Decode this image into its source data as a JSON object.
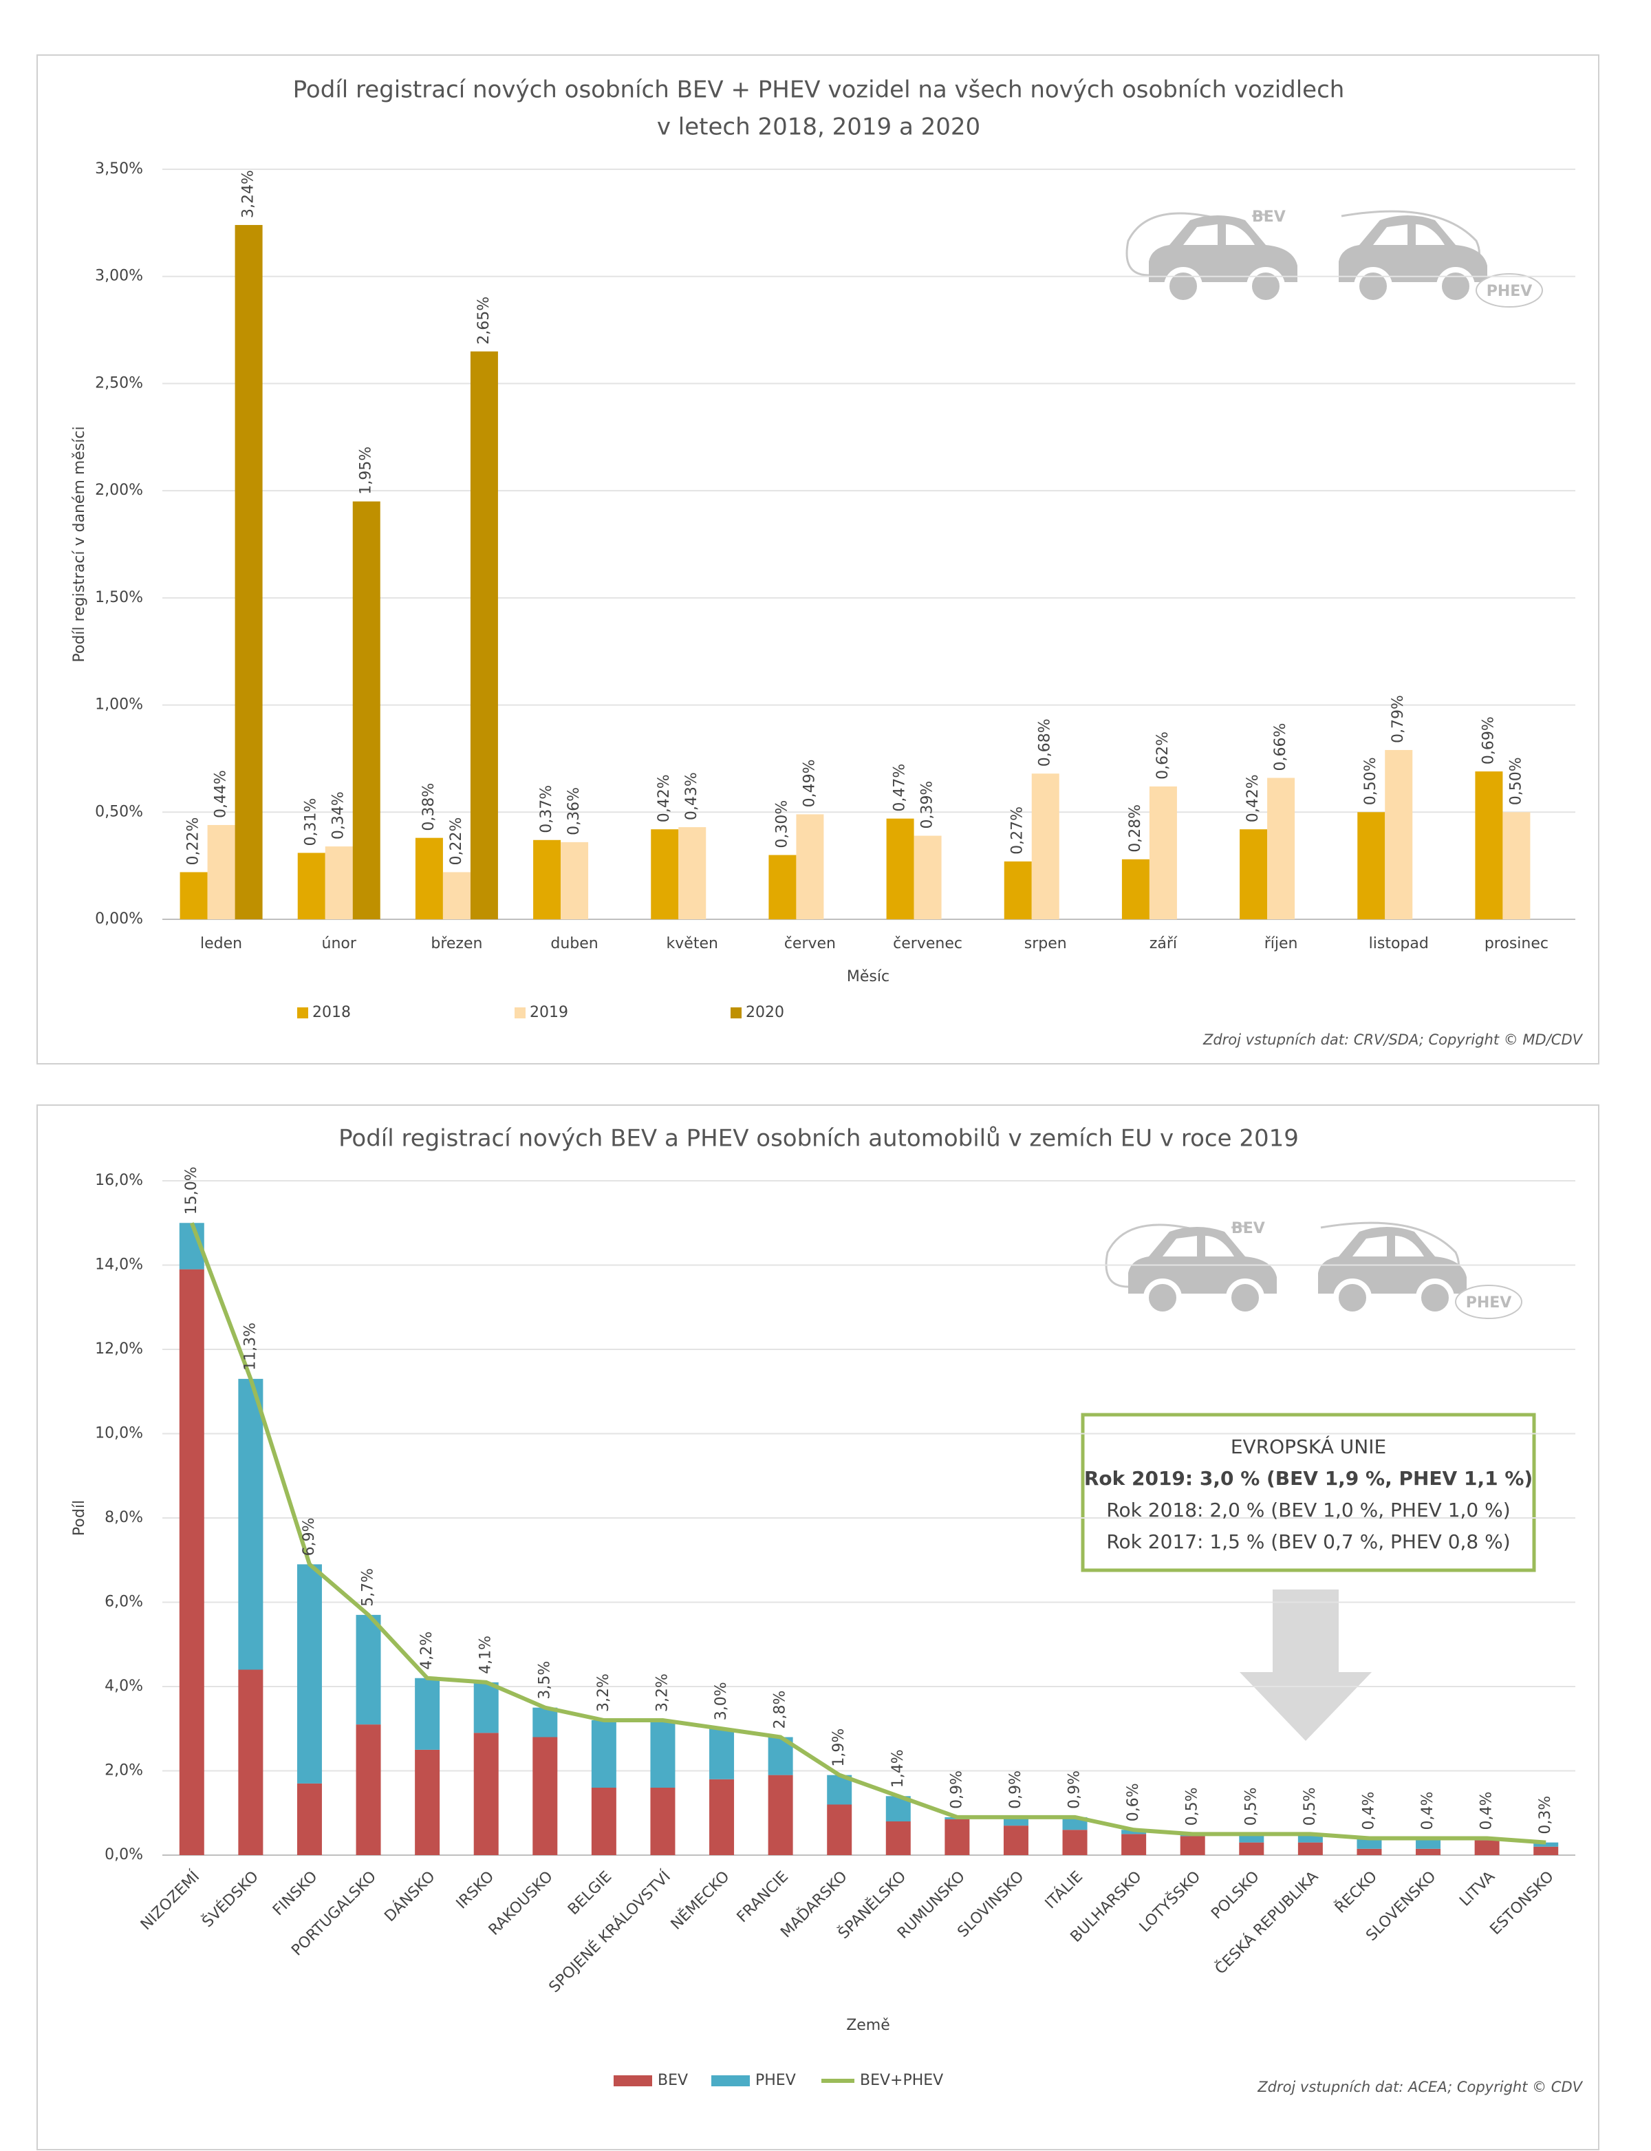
{
  "chart_data": [
    {
      "type": "bar",
      "title": [
        "Podíl registrací nových osobních BEV + PHEV vozidel na všech nových osobních vozidlech",
        "v letech 2018, 2019 a 2020"
      ],
      "icon_labels": [
        "BEV",
        "PHEV"
      ],
      "x_label": "Měsíc",
      "y_label": "Podíl registrací v daném měsíci",
      "source": "Zdroj vstupních dat: CRV/SDA; Copyright © MD/CDV",
      "categories": [
        "leden",
        "únor",
        "březen",
        "duben",
        "květen",
        "červen",
        "červenec",
        "srpen",
        "září",
        "říjen",
        "listopad",
        "prosinec"
      ],
      "series": [
        {
          "name": "2018",
          "color": "#e2a900",
          "values": [
            0.22,
            0.31,
            0.38,
            0.37,
            0.42,
            0.3,
            0.47,
            0.27,
            0.28,
            0.42,
            0.5,
            0.69
          ],
          "value_labels": [
            "0,22%",
            "0,31%",
            "0,38%",
            "0,37%",
            "0,42%",
            "0,30%",
            "0,47%",
            "0,27%",
            "0,28%",
            "0,42%",
            "0,50%",
            "0,69%"
          ]
        },
        {
          "name": "2019",
          "color": "#fddcaa",
          "values": [
            0.44,
            0.34,
            0.22,
            0.36,
            0.43,
            0.49,
            0.39,
            0.68,
            0.62,
            0.66,
            0.79,
            0.5
          ],
          "value_labels": [
            "0,44%",
            "0,34%",
            "0,22%",
            "0,36%",
            "0,43%",
            "0,49%",
            "0,39%",
            "0,68%",
            "0,62%",
            "0,66%",
            "0,79%",
            "0,50%"
          ]
        },
        {
          "name": "2020",
          "color": "#bf9000",
          "values": [
            3.24,
            1.95,
            2.65,
            null,
            null,
            null,
            null,
            null,
            null,
            null,
            null,
            null
          ],
          "value_labels": [
            "3,24%",
            "1,95%",
            "2,65%",
            null,
            null,
            null,
            null,
            null,
            null,
            null,
            null,
            null
          ]
        }
      ],
      "ylim": [
        0,
        3.5
      ],
      "yticks": [
        {
          "value": 0,
          "label": "0,00%"
        },
        {
          "value": 0.5,
          "label": "0,50%"
        },
        {
          "value": 1,
          "label": "1,00%"
        },
        {
          "value": 1.5,
          "label": "1,50%"
        },
        {
          "value": 2,
          "label": "2,00%"
        },
        {
          "value": 2.5,
          "label": "2,50%"
        },
        {
          "value": 3,
          "label": "3,00%"
        },
        {
          "value": 3.5,
          "label": "3,50%"
        }
      ],
      "grid": true,
      "legend": "bottom"
    },
    {
      "type": "stacked_bar",
      "title": [
        "Podíl registrací nových BEV a PHEV osobních automobilů v zemích EU v roce 2019"
      ],
      "icon_labels": [
        "BEV",
        "PHEV"
      ],
      "x_label": "Země",
      "y_label": "Podíl",
      "source": "Zdroj vstupních dat: ACEA; Copyright © CDV",
      "annotation": [
        "EVROPSKÁ UNIE",
        "Rok 2019: 3,0 % (BEV 1,9 %, PHEV 1,1 %)",
        "Rok 2018: 2,0 % (BEV 1,0 %, PHEV 1,0 %)",
        "Rok 2017: 1,5 % (BEV 0,7 %, PHEV 0,8 %)"
      ],
      "categories": [
        "NIZOZEMÍ",
        "ŠVÉDSKO",
        "FINSKO",
        "PORTUGALSKO",
        "DÁNSKO",
        "IRSKO",
        "RAKOUSKO",
        "BELGIE",
        "SPOJENÉ KRÁLOVSTVÍ",
        "NĚMECKO",
        "FRANCIE",
        "MAĎARSKO",
        "ŠPANĚLSKO",
        "RUMUNSKO",
        "SLOVINSKO",
        "ITÁLIE",
        "BULHARSKO",
        "LOTYŠSKO",
        "POLSKO",
        "ČESKÁ REPUBLIKA",
        "ŘECKO",
        "SLOVENSKO",
        "LITVA",
        "ESTONSKO"
      ],
      "series": [
        {
          "name": "BEV",
          "color": "#c0504d",
          "values": [
            13.9,
            4.4,
            1.7,
            3.1,
            2.5,
            2.9,
            2.8,
            1.6,
            1.6,
            1.8,
            1.9,
            1.2,
            0.8,
            0.85,
            0.7,
            0.6,
            0.5,
            0.45,
            0.3,
            0.3,
            0.15,
            0.15,
            0.35,
            0.2
          ]
        },
        {
          "name": "PHEV",
          "color": "#4bacc6",
          "values": [
            1.1,
            6.9,
            5.2,
            2.6,
            1.7,
            1.2,
            0.7,
            1.6,
            1.6,
            1.2,
            0.9,
            0.7,
            0.6,
            0.05,
            0.2,
            0.3,
            0.1,
            0.05,
            0.2,
            0.2,
            0.25,
            0.25,
            0.05,
            0.1
          ]
        },
        {
          "name": "BEV+PHEV",
          "type": "line",
          "color": "#9bbb59",
          "values": [
            15.0,
            11.3,
            6.9,
            5.7,
            4.2,
            4.1,
            3.5,
            3.2,
            3.2,
            3.0,
            2.8,
            1.9,
            1.4,
            0.9,
            0.9,
            0.9,
            0.6,
            0.5,
            0.5,
            0.5,
            0.4,
            0.4,
            0.4,
            0.3
          ],
          "value_labels": [
            "15,0%",
            "11,3%",
            "6,9%",
            "5,7%",
            "4,2%",
            "4,1%",
            "3,5%",
            "3,2%",
            "3,2%",
            "3,0%",
            "2,8%",
            "1,9%",
            "1,4%",
            "0,9%",
            "0,9%",
            "0,9%",
            "0,6%",
            "0,5%",
            "0,5%",
            "0,5%",
            "0,4%",
            "0,4%",
            "0,4%",
            "0,3%"
          ]
        }
      ],
      "ylim": [
        0,
        16
      ],
      "yticks": [
        {
          "value": 0,
          "label": "0,0%"
        },
        {
          "value": 2,
          "label": "2,0%"
        },
        {
          "value": 4,
          "label": "4,0%"
        },
        {
          "value": 6,
          "label": "6,0%"
        },
        {
          "value": 8,
          "label": "8,0%"
        },
        {
          "value": 10,
          "label": "10,0%"
        },
        {
          "value": 12,
          "label": "12,0%"
        },
        {
          "value": 14,
          "label": "14,0%"
        },
        {
          "value": 16,
          "label": "16,0%"
        }
      ],
      "grid": true,
      "legend": "bottom"
    }
  ]
}
